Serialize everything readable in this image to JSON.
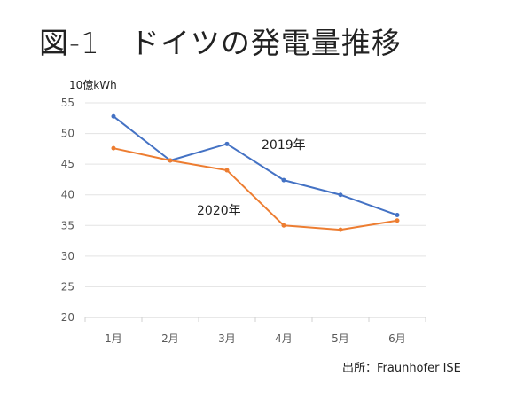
{
  "page": {
    "title": "図-1　ドイツの発電量推移",
    "source": "出所：Fraunhofer ISE"
  },
  "chart_data": {
    "type": "line",
    "title": "図-1　ドイツの発電量推移",
    "ylabel": "10億kWh",
    "xlabel": "",
    "categories": [
      "1月",
      "2月",
      "3月",
      "4月",
      "5月",
      "6月"
    ],
    "ylim": [
      20,
      55
    ],
    "yticks": [
      20,
      25,
      30,
      35,
      40,
      45,
      50,
      55
    ],
    "grid": true,
    "series": [
      {
        "name": "2019年",
        "color": "#4472c4",
        "values": [
          52.8,
          45.6,
          48.3,
          42.4,
          40.0,
          36.7
        ]
      },
      {
        "name": "2020年",
        "color": "#ed7d31",
        "values": [
          47.6,
          45.6,
          44.0,
          35.0,
          34.3,
          35.8
        ]
      }
    ],
    "annotations": [
      "2019年",
      "2020年"
    ],
    "source": "出所：Fraunhofer ISE"
  }
}
